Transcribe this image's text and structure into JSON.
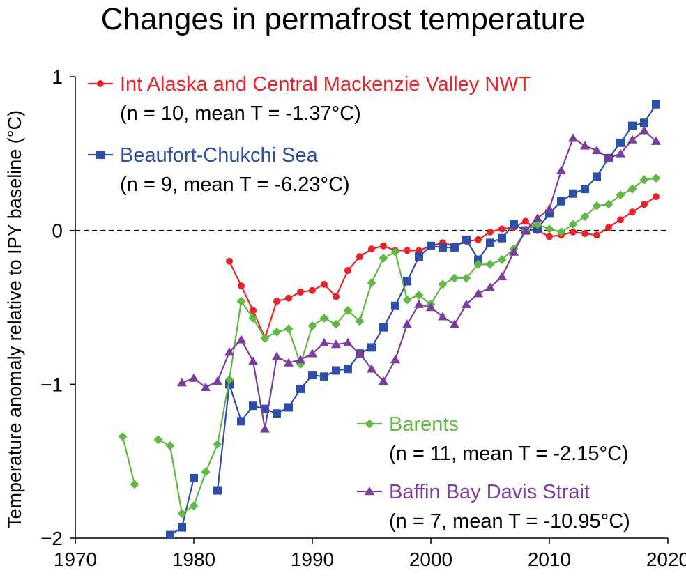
{
  "chart_data": {
    "type": "line",
    "title": "Changes in permafrost temperature",
    "xlabel": "",
    "ylabel": "Temperature anomaly relative to IPY baseline (°C)",
    "xlim": [
      1970,
      2020
    ],
    "ylim": [
      -2,
      1
    ],
    "xticks": [
      1970,
      1980,
      1990,
      2000,
      2010,
      2020
    ],
    "yticks": [
      -2,
      -1,
      0,
      1
    ],
    "ytick_labels": [
      "−2",
      "−1",
      "0",
      "1"
    ],
    "reference_line": {
      "y": 0,
      "style": "dashed"
    },
    "series": [
      {
        "name": "Int Alaska and Central Mackenzie Valley NWT",
        "stats": "(n = 10, mean T = -1.37°C)",
        "color": "#e8232a",
        "marker": "circle",
        "points": [
          [
            1983,
            -0.2
          ],
          [
            1984,
            -0.36
          ],
          [
            1985,
            -0.52
          ],
          [
            1986,
            -0.7
          ],
          [
            1987,
            -0.46
          ],
          [
            1988,
            -0.44
          ],
          [
            1989,
            -0.4
          ],
          [
            1990,
            -0.39
          ],
          [
            1991,
            -0.35
          ],
          [
            1992,
            -0.43
          ],
          [
            1993,
            -0.26
          ],
          [
            1994,
            -0.17
          ],
          [
            1995,
            -0.12
          ],
          [
            1996,
            -0.1
          ],
          [
            1997,
            -0.13
          ],
          [
            1998,
            -0.13
          ],
          [
            1999,
            -0.13
          ],
          [
            2000,
            -0.1
          ],
          [
            2001,
            -0.08
          ],
          [
            2002,
            -0.1
          ],
          [
            2003,
            -0.07
          ],
          [
            2004,
            -0.06
          ],
          [
            2005,
            -0.01
          ],
          [
            2006,
            0.01
          ],
          [
            2007,
            0.02
          ],
          [
            2008,
            0.06
          ],
          [
            2009,
            0.0
          ],
          [
            2010,
            -0.04
          ],
          [
            2011,
            -0.03
          ],
          [
            2012,
            -0.01
          ],
          [
            2013,
            -0.02
          ],
          [
            2014,
            -0.03
          ],
          [
            2015,
            0.02
          ],
          [
            2016,
            0.07
          ],
          [
            2017,
            0.12
          ],
          [
            2018,
            0.17
          ],
          [
            2019,
            0.22
          ]
        ]
      },
      {
        "name": "Beaufort-Chukchi Sea",
        "stats": "(n = 9, mean T = -6.23°C)",
        "color": "#2e4fa8",
        "marker": "square",
        "points": [
          [
            1978,
            -1.98
          ],
          [
            1979,
            -1.93
          ],
          [
            1980,
            -1.61
          ],
          null,
          [
            1982,
            -1.69
          ],
          [
            1983,
            -1.0
          ],
          [
            1984,
            -1.24
          ],
          [
            1985,
            -1.14
          ],
          [
            1986,
            -1.16
          ],
          [
            1987,
            -1.19
          ],
          [
            1988,
            -1.15
          ],
          [
            1989,
            -1.03
          ],
          [
            1990,
            -0.94
          ],
          [
            1991,
            -0.95
          ],
          [
            1992,
            -0.91
          ],
          [
            1993,
            -0.9
          ],
          [
            1994,
            -0.8
          ],
          [
            1995,
            -0.76
          ],
          [
            1996,
            -0.63
          ],
          [
            1997,
            -0.49
          ],
          [
            1998,
            -0.33
          ],
          [
            1999,
            -0.17
          ],
          [
            2000,
            -0.1
          ],
          [
            2001,
            -0.11
          ],
          [
            2002,
            -0.11
          ],
          [
            2003,
            -0.06
          ],
          [
            2004,
            -0.19
          ],
          [
            2005,
            -0.08
          ],
          [
            2006,
            -0.05
          ],
          [
            2007,
            0.04
          ],
          [
            2008,
            0.0
          ],
          [
            2009,
            0.01
          ],
          [
            2010,
            0.11
          ],
          [
            2011,
            0.19
          ],
          [
            2012,
            0.24
          ],
          [
            2013,
            0.27
          ],
          [
            2014,
            0.35
          ],
          [
            2015,
            0.47
          ],
          [
            2016,
            0.57
          ],
          [
            2017,
            0.68
          ],
          [
            2018,
            0.7
          ],
          [
            2019,
            0.82
          ]
        ]
      },
      {
        "name": "Barents",
        "stats": "(n = 11, mean T = -2.15°C)",
        "color": "#62b844",
        "marker": "diamond",
        "points": [
          [
            1974,
            -1.34
          ],
          [
            1975,
            -1.65
          ],
          null,
          [
            1977,
            -1.36
          ],
          [
            1978,
            -1.4
          ],
          [
            1979,
            -1.84
          ],
          [
            1980,
            -1.79
          ],
          [
            1981,
            -1.57
          ],
          [
            1982,
            -1.39
          ],
          [
            1983,
            -0.97
          ],
          [
            1984,
            -0.46
          ],
          [
            1985,
            -0.57
          ],
          [
            1986,
            -0.7
          ],
          [
            1987,
            -0.66
          ],
          [
            1988,
            -0.64
          ],
          [
            1989,
            -0.87
          ],
          [
            1990,
            -0.62
          ],
          [
            1991,
            -0.57
          ],
          [
            1992,
            -0.61
          ],
          [
            1993,
            -0.52
          ],
          [
            1994,
            -0.59
          ],
          [
            1995,
            -0.34
          ],
          [
            1996,
            -0.18
          ],
          [
            1997,
            -0.14
          ],
          [
            1998,
            -0.45
          ],
          [
            1999,
            -0.42
          ],
          [
            2000,
            -0.48
          ],
          [
            2001,
            -0.35
          ],
          [
            2002,
            -0.31
          ],
          [
            2003,
            -0.31
          ],
          [
            2004,
            -0.22
          ],
          [
            2005,
            -0.22
          ],
          [
            2006,
            -0.19
          ],
          [
            2007,
            -0.12
          ],
          [
            2008,
            0.0
          ],
          [
            2009,
            0.04
          ],
          [
            2010,
            0.01
          ],
          [
            2011,
            -0.01
          ],
          [
            2012,
            0.04
          ],
          [
            2013,
            0.09
          ],
          [
            2014,
            0.16
          ],
          [
            2015,
            0.17
          ],
          [
            2016,
            0.23
          ],
          [
            2017,
            0.27
          ],
          [
            2018,
            0.33
          ],
          [
            2019,
            0.34
          ]
        ]
      },
      {
        "name": "Baffin Bay Davis Strait",
        "stats": "(n = 7, mean T = -10.95°C)",
        "color": "#7a3f9d",
        "marker": "triangle",
        "points": [
          [
            1979,
            -0.99
          ],
          [
            1980,
            -0.96
          ],
          [
            1981,
            -1.02
          ],
          [
            1982,
            -0.98
          ],
          [
            1983,
            -0.79
          ],
          [
            1984,
            -0.71
          ],
          [
            1985,
            -0.85
          ],
          [
            1986,
            -1.29
          ],
          [
            1987,
            -0.82
          ],
          [
            1988,
            -0.86
          ],
          [
            1989,
            -0.84
          ],
          [
            1990,
            -0.8
          ],
          [
            1991,
            -0.73
          ],
          [
            1992,
            -0.74
          ],
          [
            1993,
            -0.73
          ],
          [
            1994,
            -0.8
          ],
          [
            1995,
            -0.9
          ],
          [
            1996,
            -0.98
          ],
          [
            1997,
            -0.84
          ],
          [
            1998,
            -0.61
          ],
          [
            1999,
            -0.48
          ],
          [
            2000,
            -0.5
          ],
          [
            2001,
            -0.56
          ],
          [
            2002,
            -0.61
          ],
          [
            2003,
            -0.48
          ],
          [
            2004,
            -0.41
          ],
          [
            2005,
            -0.37
          ],
          [
            2006,
            -0.3
          ],
          [
            2007,
            -0.14
          ],
          [
            2008,
            0.0
          ],
          [
            2009,
            0.08
          ],
          [
            2010,
            0.14
          ],
          [
            2011,
            0.39
          ],
          [
            2012,
            0.6
          ],
          [
            2013,
            0.55
          ],
          [
            2014,
            0.52
          ],
          [
            2015,
            0.47
          ],
          [
            2016,
            0.5
          ],
          [
            2017,
            0.59
          ],
          [
            2018,
            0.65
          ],
          [
            2019,
            0.58
          ]
        ]
      }
    ]
  }
}
